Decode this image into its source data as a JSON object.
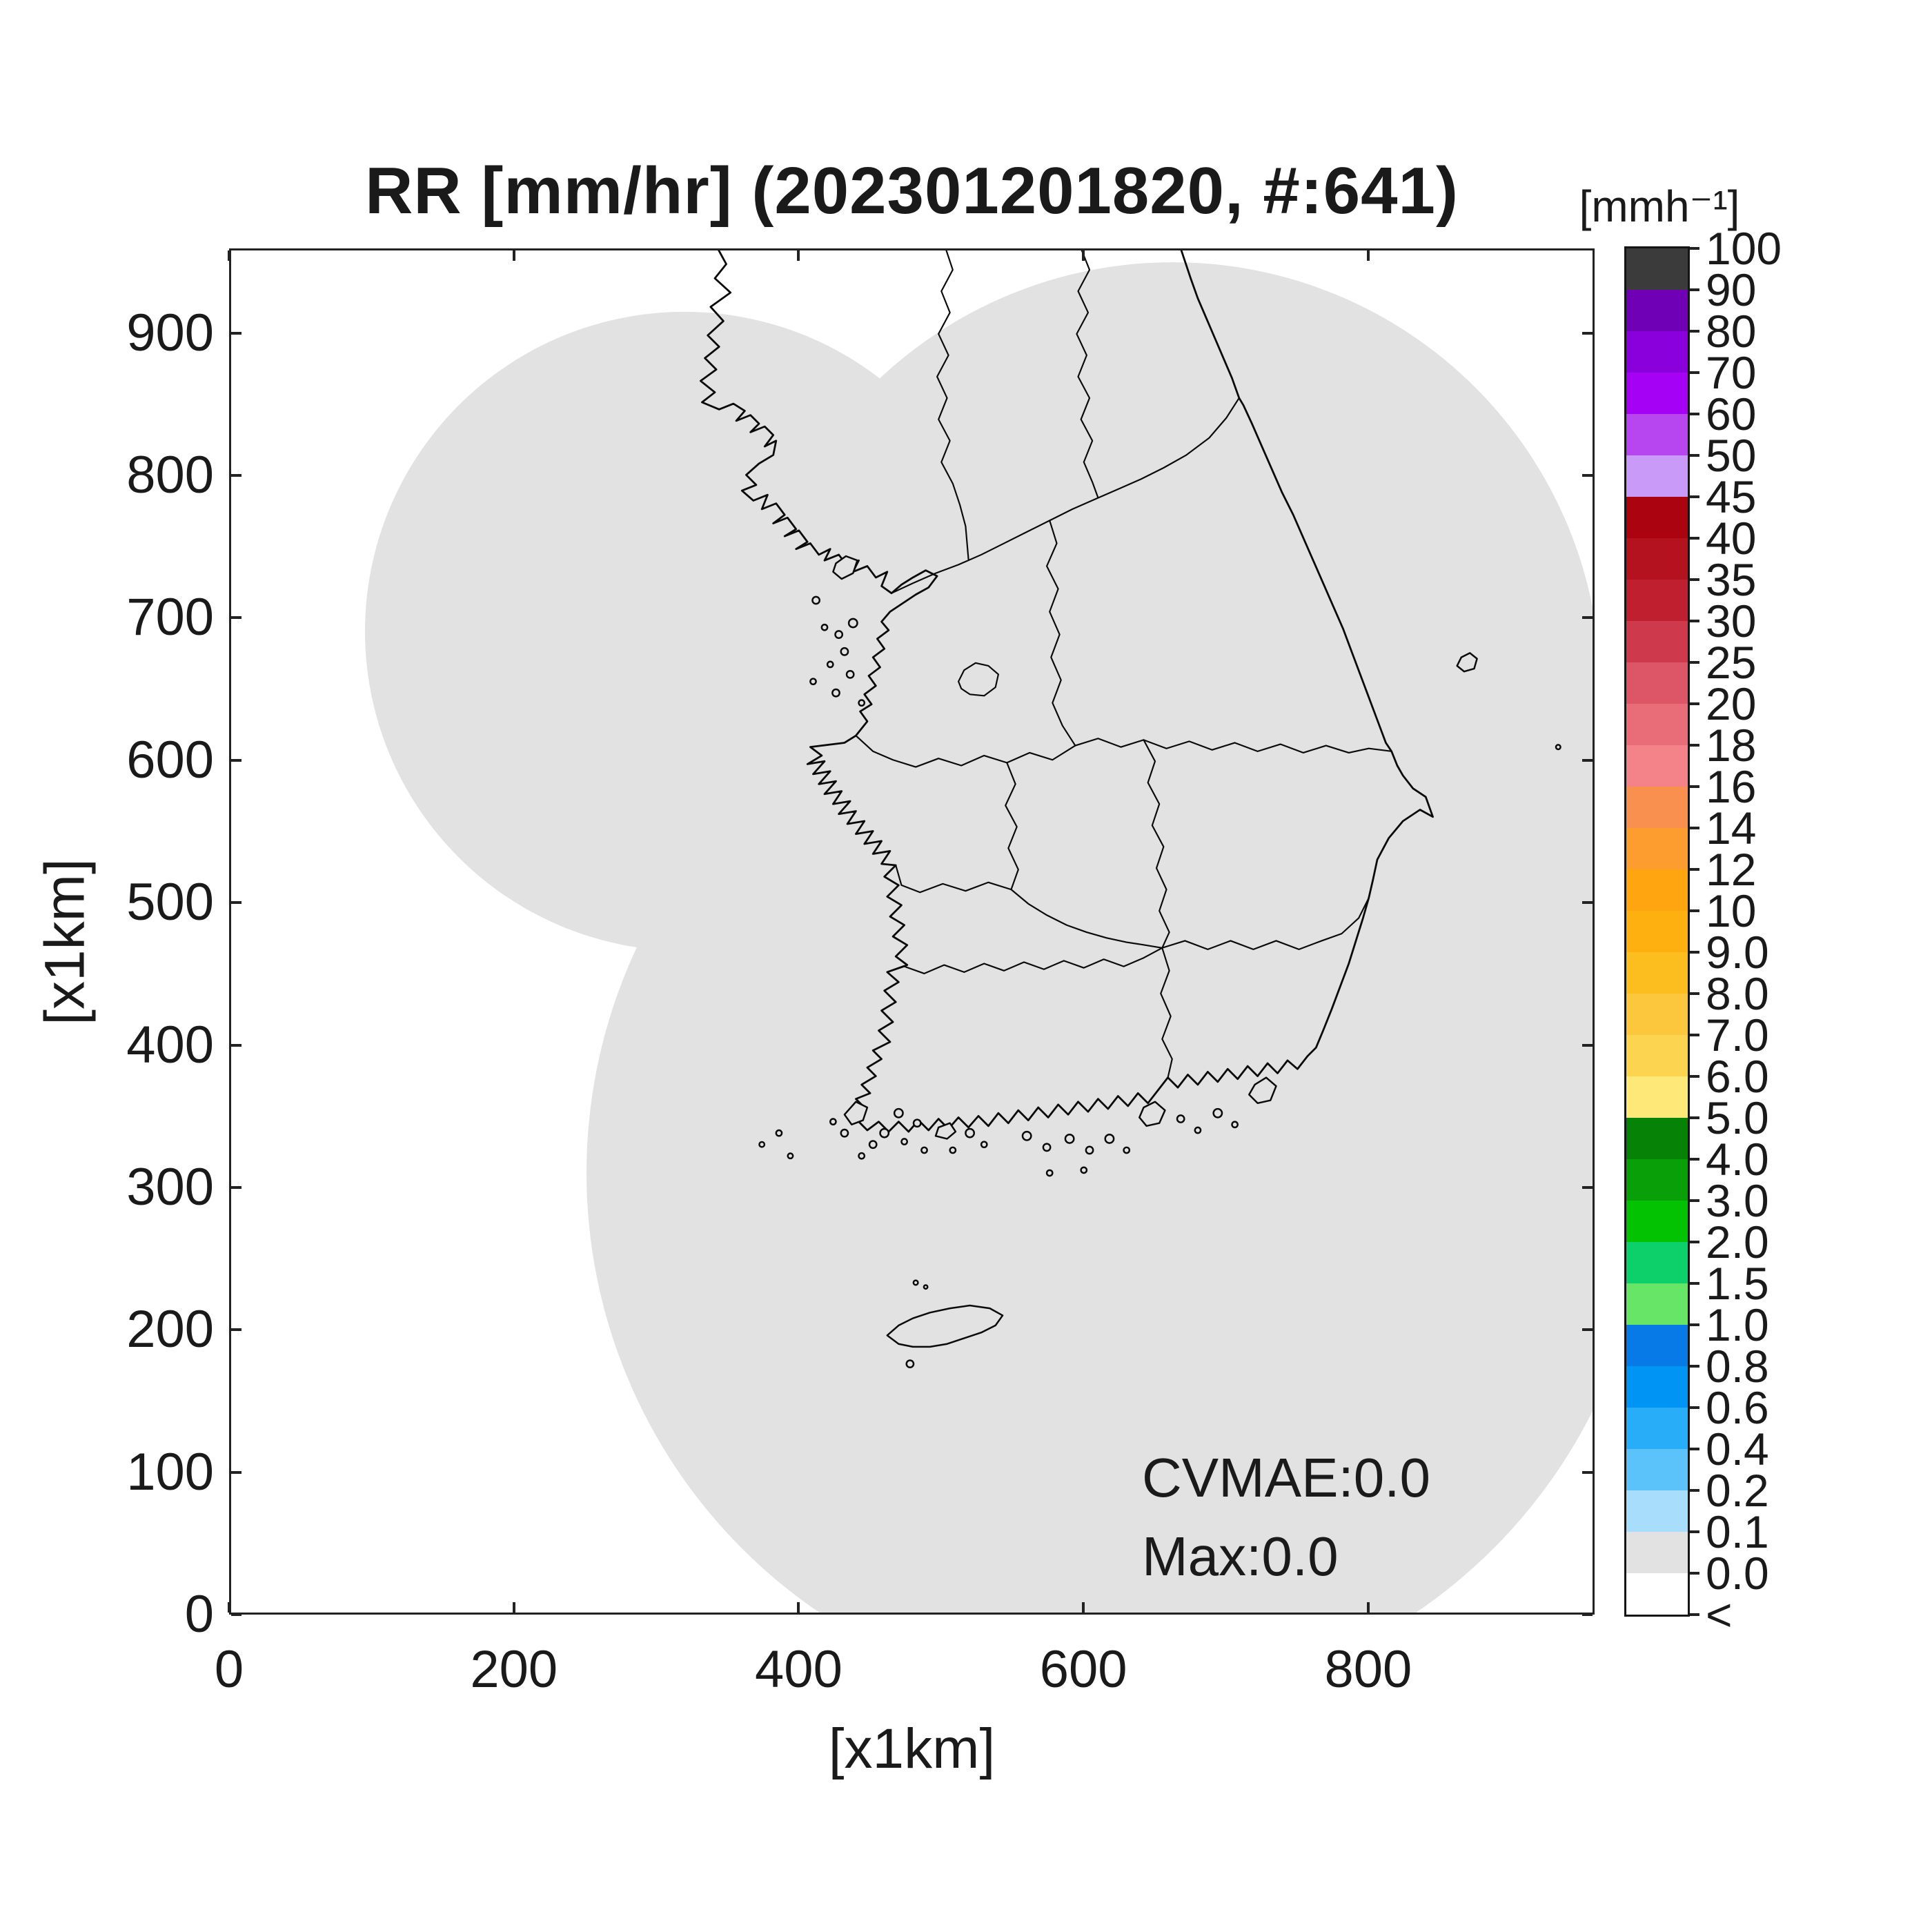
{
  "figure": {
    "background": "#ffffff"
  },
  "title": {
    "text": "RR [mm/hr] (202301201820, #:641)"
  },
  "plot": {
    "x_axis": {
      "label": "[x1km]",
      "tick_labels": [
        "0",
        "200",
        "400",
        "600",
        "800"
      ],
      "tick_values": [
        0,
        200,
        400,
        600,
        800
      ],
      "range": [
        0,
        959
      ]
    },
    "y_axis": {
      "label": "[x1km]",
      "tick_labels": [
        "0",
        "100",
        "200",
        "300",
        "400",
        "500",
        "600",
        "700",
        "800",
        "900"
      ],
      "tick_values": [
        0,
        100,
        200,
        300,
        400,
        500,
        600,
        700,
        800,
        900
      ],
      "range": [
        0,
        959
      ]
    },
    "annotations": {
      "cvmae": "CVMAE:0.0",
      "max": "Max:0.0"
    }
  },
  "colorbar": {
    "title": "[mmh⁻¹]",
    "tick_labels": [
      "100",
      "90",
      "80",
      "70",
      "60",
      "50",
      "45",
      "40",
      "35",
      "30",
      "25",
      "20",
      "18",
      "16",
      "14",
      "12",
      "10",
      "9.0",
      "8.0",
      "7.0",
      "6.0",
      "5.0",
      "4.0",
      "3.0",
      "2.0",
      "1.5",
      "1.0",
      "0.8",
      "0.6",
      "0.4",
      "0.2",
      "0.1",
      "0.0",
      "<"
    ],
    "segment_colors_top_to_bottom": [
      "#3b3b3b",
      "#6f00b5",
      "#8a00dd",
      "#a501f5",
      "#b846f0",
      "#c99af8",
      "#ab0410",
      "#b5121f",
      "#bf1f2e",
      "#ce3a4c",
      "#dd5668",
      "#e86d79",
      "#f48389",
      "#f9904f",
      "#fd9d30",
      "#fea50f",
      "#fdb010",
      "#fcbd1f",
      "#fcc63d",
      "#fdd44f",
      "#fde878",
      "#068206",
      "#089f08",
      "#02c202",
      "#0ed06a",
      "#66e566",
      "#087ae8",
      "#0095f5",
      "#28adf8",
      "#5cc3fa",
      "#a8defc",
      "#e2e2e2",
      "#ffffff"
    ]
  },
  "map": {
    "coverage_fill": "#e2e2e2",
    "line_color": "#0a0a0a",
    "region": "Korean Peninsula with province boundaries, radar coverage circles union shown in gray"
  },
  "chart_data": {
    "type": "heatmap",
    "title": "RR [mm/hr] (202301201820, #:641)",
    "xlabel": "[x1km]",
    "ylabel": "[x1km]",
    "xlim": [
      0,
      959
    ],
    "ylim": [
      0,
      959
    ],
    "xticks": [
      0,
      200,
      400,
      600,
      800
    ],
    "yticks": [
      0,
      100,
      200,
      300,
      400,
      500,
      600,
      700,
      800,
      900
    ],
    "grid": false,
    "colorbar_units": "mmh⁻¹",
    "levels_low_to_high": [
      "<",
      0.0,
      0.1,
      0.2,
      0.4,
      0.6,
      0.8,
      1.0,
      1.5,
      2.0,
      3.0,
      4.0,
      5.0,
      6.0,
      7.0,
      8.0,
      9.0,
      10,
      12,
      14,
      16,
      18,
      20,
      25,
      30,
      35,
      40,
      45,
      50,
      60,
      70,
      80,
      90,
      100
    ],
    "level_colors_low_to_high": [
      "#ffffff",
      "#e2e2e2",
      "#a8defc",
      "#5cc3fa",
      "#28adf8",
      "#0095f5",
      "#087ae8",
      "#66e566",
      "#0ed06a",
      "#02c202",
      "#089f08",
      "#068206",
      "#fde878",
      "#fdd44f",
      "#fcc63d",
      "#fcbd1f",
      "#fdb010",
      "#fea50f",
      "#fd9d30",
      "#f9904f",
      "#f48389",
      "#e86d79",
      "#dd5668",
      "#ce3a4c",
      "#bf1f2e",
      "#b5121f",
      "#ab0410",
      "#c99af8",
      "#b846f0",
      "#a501f5",
      "#8a00dd",
      "#6f00b5",
      "#3b3b3b"
    ],
    "timestamp": "202301201820",
    "count_label": 641,
    "stats": {
      "CVMAE": 0.0,
      "Max": 0.0
    },
    "field_summary": "Rain rate field is 0.0 mm/hr everywhere: the radar coverage union over the Korean Peninsula is rendered entirely in the 0.0-0.1 gray class; areas outside radar range are white."
  }
}
